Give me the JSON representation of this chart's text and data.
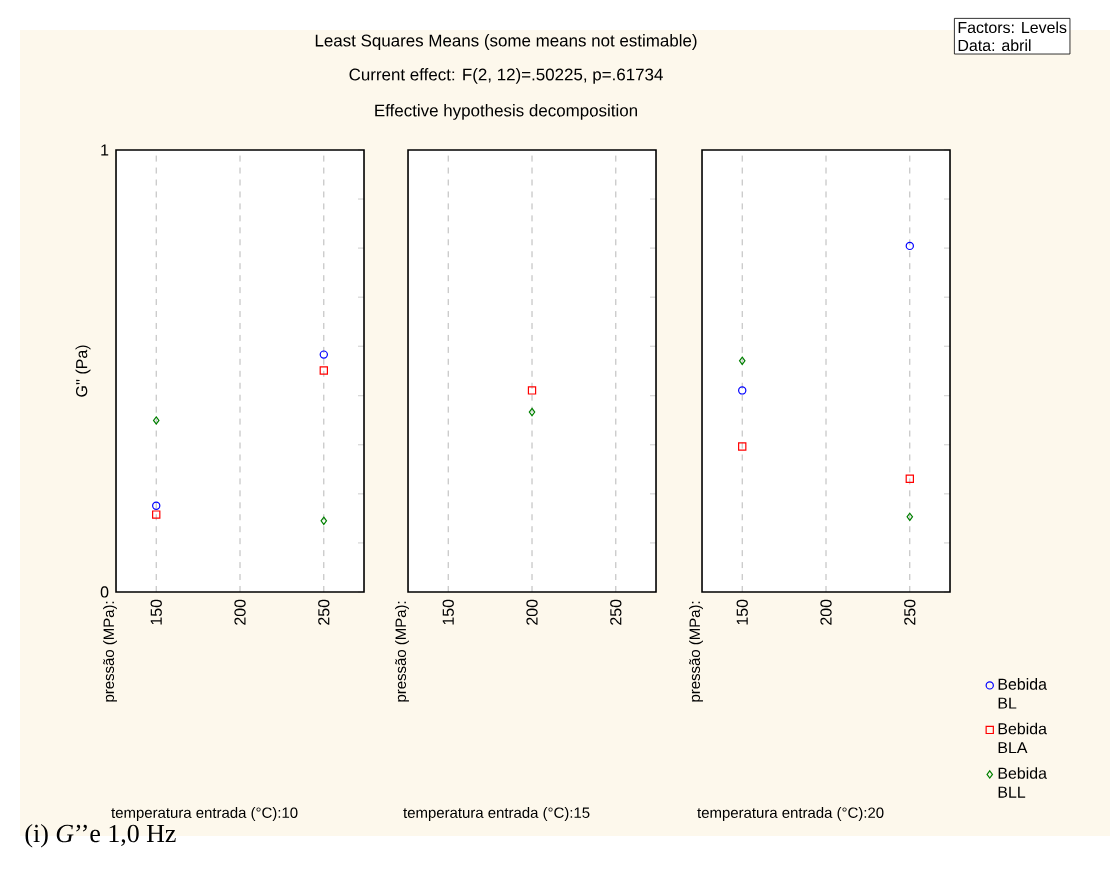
{
  "chart_data": [
    {
      "type": "scatter",
      "annotations": [
        "pressão (MPa):",
        "(i) *G*’’e 1,0 Hz"
      ],
      "xlabel": "temperatura entrada (°C):10",
      "ylabel": "G'' (Pa)",
      "grid": "x",
      "xlim": [
        126,
        274
      ],
      "xticks": [
        150,
        200,
        250
      ],
      "ylim": [
        0,
        1
      ],
      "yticks": [
        0,
        {
          "value": 0.111,
          "label": null
        },
        {
          "value": 0.222,
          "label": null
        },
        {
          "value": 0.333,
          "label": null
        },
        {
          "value": 0.444,
          "label": null
        },
        {
          "value": 0.556,
          "label": null
        },
        {
          "value": 0.667,
          "label": null
        },
        {
          "value": 0.778,
          "label": null
        },
        {
          "value": 0.889,
          "label": null
        },
        1
      ],
      "series": [
        {
          "color": "#0000ff",
          "marker": "circle",
          "x": [
            150,
            250
          ],
          "values": [
            0.195,
            0.537
          ]
        },
        {
          "color": "#ff0000",
          "marker": "square",
          "x": [
            150,
            250
          ],
          "values": [
            0.175,
            0.501
          ]
        },
        {
          "color": "#008000",
          "marker": "diamond",
          "x": [
            150,
            250
          ],
          "values": [
            0.388,
            0.161
          ]
        }
      ]
    },
    {
      "type": "scatter",
      "title": "Least Squares Means (some means not estimable)",
      "subtitle": "Current effect: F(2, 12)=.50225, p=.61734",
      "annotations": [
        "Effective hypothesis decomposition",
        "pressão (MPa):"
      ],
      "xlabel": "temperatura entrada (°C):15",
      "grid": "x",
      "tick_labels": "x",
      "xlim": [
        126,
        274
      ],
      "xticks": [
        150,
        200,
        250
      ],
      "ylim": [
        0,
        1
      ],
      "yticks": [
        0,
        {
          "value": 0.111,
          "label": null
        },
        {
          "value": 0.222,
          "label": null
        },
        {
          "value": 0.333,
          "label": null
        },
        {
          "value": 0.444,
          "label": null
        },
        {
          "value": 0.556,
          "label": null
        },
        {
          "value": 0.667,
          "label": null
        },
        {
          "value": 0.778,
          "label": null
        },
        {
          "value": 0.889,
          "label": null
        },
        1
      ],
      "series": [
        {
          "color": "#ff0000",
          "marker": "square",
          "x": [
            200
          ],
          "values": [
            0.456
          ]
        },
        {
          "color": "#008000",
          "marker": "diamond",
          "x": [
            200
          ],
          "values": [
            0.407
          ]
        }
      ]
    },
    {
      "type": "scatter",
      "annotations": [
        "pressão (MPa):",
        "Factors: Levels",
        "Data: abril"
      ],
      "xlabel": "temperatura entrada (°C):20",
      "grid": "x",
      "tick_labels": "x",
      "legend": "bottom right",
      "xlim": [
        126,
        274
      ],
      "xticks": [
        150,
        200,
        250
      ],
      "ylim": [
        0,
        1
      ],
      "yticks": [
        0,
        {
          "value": 0.111,
          "label": null
        },
        {
          "value": 0.222,
          "label": null
        },
        {
          "value": 0.333,
          "label": null
        },
        {
          "value": 0.444,
          "label": null
        },
        {
          "value": 0.556,
          "label": null
        },
        {
          "value": 0.667,
          "label": null
        },
        {
          "value": 0.778,
          "label": null
        },
        {
          "value": 0.889,
          "label": null
        },
        1
      ],
      "series": [
        {
          "name": "Bebida BL",
          "color": "#0000ff",
          "marker": "circle",
          "x": [
            150,
            250
          ],
          "values": [
            0.456,
            0.783
          ]
        },
        {
          "name": "Bebida BLA",
          "color": "#ff0000",
          "marker": "square",
          "x": [
            150,
            250
          ],
          "values": [
            0.329,
            0.256
          ]
        },
        {
          "name": "Bebida BLL",
          "color": "#008000",
          "marker": "diamond",
          "x": [
            150,
            250
          ],
          "values": [
            0.523,
            0.17
          ]
        }
      ]
    }
  ]
}
